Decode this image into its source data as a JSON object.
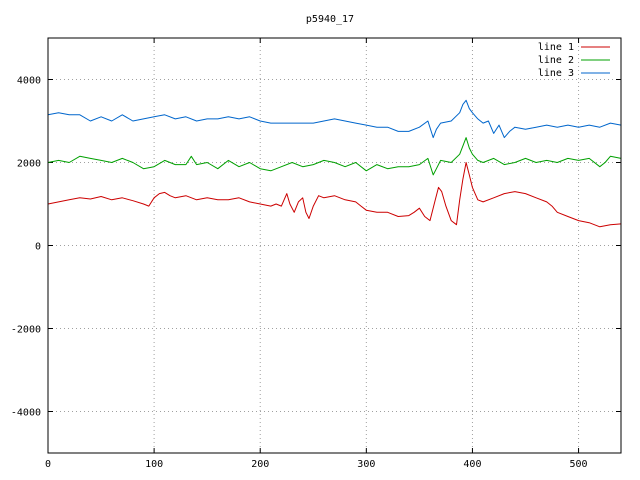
{
  "chart_data": {
    "type": "line",
    "title": "p5940_17",
    "xlabel": "",
    "ylabel": "",
    "xlim": [
      0,
      540
    ],
    "ylim": [
      -5000,
      5000
    ],
    "x_ticks": [
      0,
      100,
      200,
      300,
      400,
      500
    ],
    "y_ticks": [
      -4000,
      -2000,
      0,
      2000,
      4000
    ],
    "grid": true,
    "legend": "top-right",
    "series": [
      {
        "name": "line 1",
        "color": "#cc0000",
        "points": [
          [
            0,
            1000
          ],
          [
            10,
            1050
          ],
          [
            20,
            1100
          ],
          [
            30,
            1150
          ],
          [
            40,
            1120
          ],
          [
            50,
            1180
          ],
          [
            60,
            1100
          ],
          [
            70,
            1150
          ],
          [
            80,
            1080
          ],
          [
            90,
            1000
          ],
          [
            95,
            950
          ],
          [
            100,
            1150
          ],
          [
            105,
            1250
          ],
          [
            110,
            1280
          ],
          [
            115,
            1200
          ],
          [
            120,
            1150
          ],
          [
            130,
            1200
          ],
          [
            140,
            1100
          ],
          [
            150,
            1150
          ],
          [
            160,
            1100
          ],
          [
            170,
            1100
          ],
          [
            180,
            1150
          ],
          [
            190,
            1050
          ],
          [
            200,
            1000
          ],
          [
            210,
            950
          ],
          [
            215,
            1000
          ],
          [
            220,
            950
          ],
          [
            225,
            1250
          ],
          [
            228,
            1000
          ],
          [
            232,
            800
          ],
          [
            236,
            1050
          ],
          [
            240,
            1150
          ],
          [
            243,
            800
          ],
          [
            246,
            650
          ],
          [
            250,
            950
          ],
          [
            255,
            1200
          ],
          [
            260,
            1150
          ],
          [
            270,
            1200
          ],
          [
            280,
            1100
          ],
          [
            290,
            1050
          ],
          [
            295,
            950
          ],
          [
            300,
            850
          ],
          [
            310,
            800
          ],
          [
            320,
            800
          ],
          [
            330,
            700
          ],
          [
            340,
            720
          ],
          [
            345,
            800
          ],
          [
            350,
            900
          ],
          [
            355,
            700
          ],
          [
            360,
            600
          ],
          [
            365,
            1100
          ],
          [
            368,
            1400
          ],
          [
            371,
            1300
          ],
          [
            375,
            950
          ],
          [
            380,
            600
          ],
          [
            385,
            500
          ],
          [
            388,
            1100
          ],
          [
            391,
            1600
          ],
          [
            394,
            2000
          ],
          [
            397,
            1700
          ],
          [
            400,
            1400
          ],
          [
            405,
            1100
          ],
          [
            410,
            1050
          ],
          [
            420,
            1150
          ],
          [
            430,
            1250
          ],
          [
            440,
            1300
          ],
          [
            450,
            1250
          ],
          [
            460,
            1150
          ],
          [
            470,
            1050
          ],
          [
            475,
            950
          ],
          [
            480,
            800
          ],
          [
            490,
            700
          ],
          [
            500,
            600
          ],
          [
            510,
            550
          ],
          [
            520,
            450
          ],
          [
            530,
            500
          ],
          [
            540,
            520
          ]
        ]
      },
      {
        "name": "line 2",
        "color": "#00a000",
        "points": [
          [
            0,
            2000
          ],
          [
            10,
            2050
          ],
          [
            20,
            2000
          ],
          [
            30,
            2150
          ],
          [
            40,
            2100
          ],
          [
            50,
            2050
          ],
          [
            60,
            2000
          ],
          [
            70,
            2100
          ],
          [
            80,
            2000
          ],
          [
            90,
            1850
          ],
          [
            100,
            1900
          ],
          [
            110,
            2050
          ],
          [
            120,
            1950
          ],
          [
            130,
            1950
          ],
          [
            135,
            2150
          ],
          [
            140,
            1950
          ],
          [
            150,
            2000
          ],
          [
            160,
            1850
          ],
          [
            170,
            2050
          ],
          [
            180,
            1900
          ],
          [
            190,
            2000
          ],
          [
            200,
            1850
          ],
          [
            210,
            1800
          ],
          [
            220,
            1900
          ],
          [
            230,
            2000
          ],
          [
            240,
            1900
          ],
          [
            250,
            1950
          ],
          [
            260,
            2050
          ],
          [
            270,
            2000
          ],
          [
            280,
            1900
          ],
          [
            290,
            2000
          ],
          [
            300,
            1800
          ],
          [
            310,
            1950
          ],
          [
            320,
            1850
          ],
          [
            330,
            1900
          ],
          [
            340,
            1900
          ],
          [
            350,
            1950
          ],
          [
            358,
            2100
          ],
          [
            363,
            1700
          ],
          [
            366,
            1850
          ],
          [
            370,
            2050
          ],
          [
            380,
            2000
          ],
          [
            388,
            2200
          ],
          [
            391,
            2400
          ],
          [
            394,
            2600
          ],
          [
            397,
            2350
          ],
          [
            400,
            2200
          ],
          [
            405,
            2050
          ],
          [
            410,
            2000
          ],
          [
            420,
            2100
          ],
          [
            430,
            1950
          ],
          [
            440,
            2000
          ],
          [
            450,
            2100
          ],
          [
            460,
            2000
          ],
          [
            470,
            2050
          ],
          [
            480,
            2000
          ],
          [
            490,
            2100
          ],
          [
            500,
            2050
          ],
          [
            510,
            2100
          ],
          [
            520,
            1900
          ],
          [
            525,
            2000
          ],
          [
            530,
            2150
          ],
          [
            540,
            2100
          ]
        ]
      },
      {
        "name": "line 3",
        "color": "#0066cc",
        "points": [
          [
            0,
            3150
          ],
          [
            10,
            3200
          ],
          [
            20,
            3150
          ],
          [
            30,
            3150
          ],
          [
            40,
            3000
          ],
          [
            50,
            3100
          ],
          [
            60,
            3000
          ],
          [
            70,
            3150
          ],
          [
            80,
            3000
          ],
          [
            90,
            3050
          ],
          [
            100,
            3100
          ],
          [
            110,
            3150
          ],
          [
            120,
            3050
          ],
          [
            130,
            3100
          ],
          [
            140,
            3000
          ],
          [
            150,
            3050
          ],
          [
            160,
            3050
          ],
          [
            170,
            3100
          ],
          [
            180,
            3050
          ],
          [
            190,
            3100
          ],
          [
            200,
            3000
          ],
          [
            210,
            2950
          ],
          [
            220,
            2950
          ],
          [
            230,
            2950
          ],
          [
            240,
            2950
          ],
          [
            250,
            2950
          ],
          [
            260,
            3000
          ],
          [
            270,
            3050
          ],
          [
            280,
            3000
          ],
          [
            290,
            2950
          ],
          [
            300,
            2900
          ],
          [
            310,
            2850
          ],
          [
            320,
            2850
          ],
          [
            330,
            2750
          ],
          [
            340,
            2750
          ],
          [
            350,
            2850
          ],
          [
            358,
            3000
          ],
          [
            363,
            2600
          ],
          [
            366,
            2800
          ],
          [
            370,
            2950
          ],
          [
            380,
            3000
          ],
          [
            388,
            3200
          ],
          [
            391,
            3400
          ],
          [
            394,
            3500
          ],
          [
            397,
            3300
          ],
          [
            400,
            3200
          ],
          [
            405,
            3050
          ],
          [
            410,
            2950
          ],
          [
            415,
            3000
          ],
          [
            420,
            2700
          ],
          [
            425,
            2900
          ],
          [
            430,
            2600
          ],
          [
            435,
            2750
          ],
          [
            440,
            2850
          ],
          [
            450,
            2800
          ],
          [
            460,
            2850
          ],
          [
            470,
            2900
          ],
          [
            480,
            2850
          ],
          [
            490,
            2900
          ],
          [
            500,
            2850
          ],
          [
            510,
            2900
          ],
          [
            520,
            2850
          ],
          [
            530,
            2950
          ],
          [
            540,
            2900
          ]
        ]
      }
    ]
  }
}
